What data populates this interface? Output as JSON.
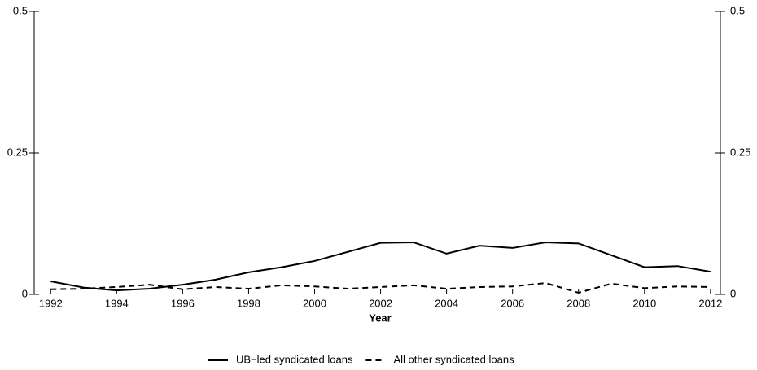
{
  "chart_data": {
    "type": "line",
    "x_label": "Year",
    "x": [
      1992,
      1993,
      1994,
      1995,
      1996,
      1997,
      1998,
      1999,
      2000,
      2001,
      2002,
      2003,
      2004,
      2005,
      2006,
      2007,
      2008,
      2009,
      2010,
      2011,
      2012
    ],
    "series": [
      {
        "name": "UB−led syndicated loans",
        "color": "#000000",
        "style": "solid",
        "values": [
          0.023,
          0.012,
          0.007,
          0.01,
          0.017,
          0.026,
          0.039,
          0.048,
          0.059,
          0.075,
          0.091,
          0.092,
          0.072,
          0.086,
          0.082,
          0.092,
          0.09,
          0.069,
          0.048,
          0.05,
          0.04
        ]
      },
      {
        "name": "All other syndicated loans",
        "color": "#000000",
        "style": "dashed",
        "values": [
          0.009,
          0.01,
          0.013,
          0.017,
          0.009,
          0.013,
          0.01,
          0.016,
          0.014,
          0.01,
          0.013,
          0.016,
          0.01,
          0.013,
          0.014,
          0.02,
          0.003,
          0.019,
          0.011,
          0.014,
          0.013
        ]
      }
    ],
    "xlim": [
      1991.5,
      2012.3
    ],
    "xticks": [
      1992,
      1994,
      1996,
      1998,
      2000,
      2002,
      2004,
      2006,
      2008,
      2010,
      2012
    ],
    "ylim": [
      0,
      0.5
    ],
    "yticks": [
      0,
      0.25,
      0.5
    ],
    "y2lim": [
      0,
      0.5
    ],
    "y2ticks": [
      0,
      0.25,
      0.5
    ],
    "legend": "bottom"
  }
}
